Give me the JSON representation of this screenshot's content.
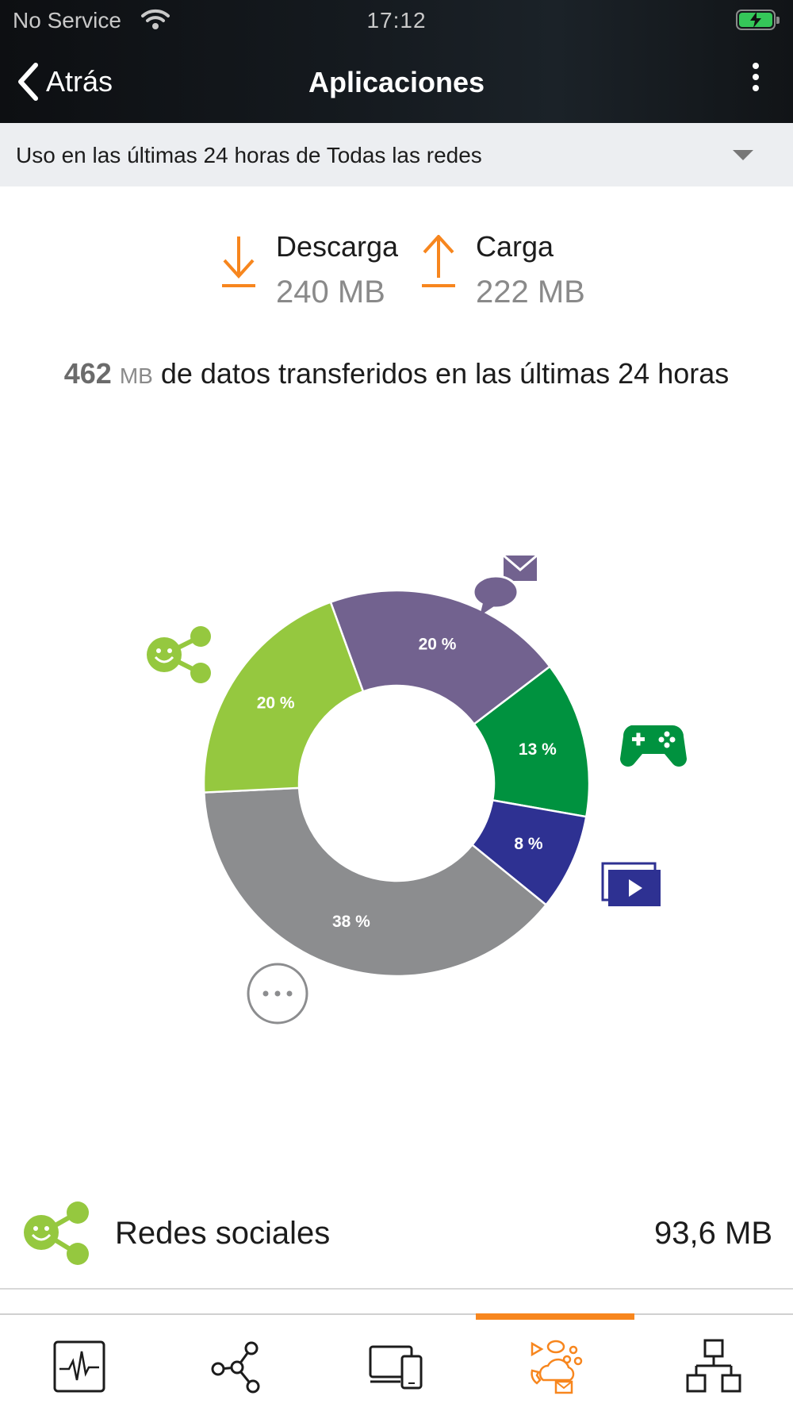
{
  "status_bar": {
    "carrier": "No Service",
    "time": "17:12"
  },
  "header": {
    "back_label": "Atrás",
    "title": "Aplicaciones"
  },
  "filter": {
    "text": "Uso en las últimas 24 horas de Todas las redes"
  },
  "transfer": {
    "download": {
      "label": "Descarga",
      "value": "240 MB"
    },
    "upload": {
      "label": "Carga",
      "value": "222 MB"
    }
  },
  "total": {
    "number": "462",
    "unit": "MB",
    "text": "de datos transferidos en las últimas 24 horas"
  },
  "colors": {
    "accent": "#f7861e",
    "social": "#95c83f",
    "messaging": "#72628f",
    "gaming": "#00923f",
    "video": "#2e3192",
    "other": "#8c8d8f"
  },
  "chart_data": {
    "type": "pie",
    "donut": true,
    "slices": [
      {
        "category": "messaging",
        "value": 20,
        "label": "20 %",
        "color": "#72628f",
        "icon": "chat-mail-icon"
      },
      {
        "category": "gaming",
        "value": 13,
        "label": "13 %",
        "color": "#00923f",
        "icon": "gamepad-icon"
      },
      {
        "category": "video",
        "value": 8,
        "label": "8 %",
        "color": "#2e3192",
        "icon": "video-icon"
      },
      {
        "category": "other",
        "value": 38,
        "label": "38 %",
        "color": "#8c8d8f",
        "icon": "more-icon"
      },
      {
        "category": "social",
        "value": 20,
        "label": "20 %",
        "color": "#95c83f",
        "icon": "social-share-icon"
      }
    ]
  },
  "list": [
    {
      "name": "Redes sociales",
      "value": "93,6 MB",
      "icon": "social-share-icon"
    }
  ],
  "tabs": [
    {
      "icon": "activity-monitor-icon",
      "active": false
    },
    {
      "icon": "network-nodes-icon",
      "active": false
    },
    {
      "icon": "devices-icon",
      "active": false
    },
    {
      "icon": "applications-icon",
      "active": true
    },
    {
      "icon": "topology-icon",
      "active": false
    }
  ]
}
